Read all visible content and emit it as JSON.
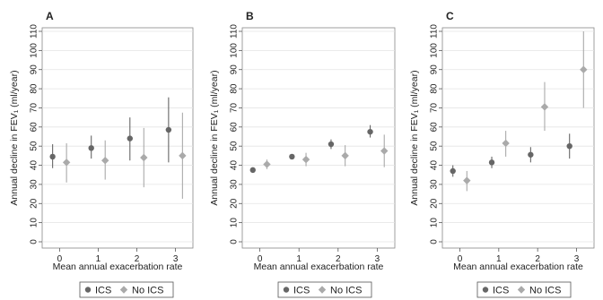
{
  "chart_data": [
    {
      "type": "scatter",
      "panel_label": "A",
      "xlabel": "Mean annual exacerbation rate",
      "ylabel": "Annual decline in FEV₁ (ml/year)",
      "xticks": [
        "0",
        "1",
        "2",
        "3"
      ],
      "yticks": [
        "0",
        "10",
        "20",
        "30",
        "40",
        "50",
        "60",
        "70",
        "80",
        "90",
        "100",
        "110"
      ],
      "ylim": [
        0,
        110
      ],
      "grid": true,
      "legend_position": "bottom",
      "series": [
        {
          "name": "ICS",
          "color": "#666666",
          "marker": "circle",
          "points": [
            {
              "x": -0.18,
              "y": 44.5,
              "lo": 38.5,
              "hi": 51
            },
            {
              "x": 0.82,
              "y": 49,
              "lo": 43.5,
              "hi": 55.5
            },
            {
              "x": 1.82,
              "y": 54,
              "lo": 42.5,
              "hi": 65
            },
            {
              "x": 2.82,
              "y": 58.5,
              "lo": 41.5,
              "hi": 75.5
            }
          ]
        },
        {
          "name": "No ICS",
          "color": "#aaaaaa",
          "marker": "diamond",
          "points": [
            {
              "x": 0.18,
              "y": 41.5,
              "lo": 31,
              "hi": 51.5
            },
            {
              "x": 1.18,
              "y": 42.5,
              "lo": 32.5,
              "hi": 53
            },
            {
              "x": 2.18,
              "y": 44,
              "lo": 28.5,
              "hi": 59.5
            },
            {
              "x": 3.18,
              "y": 45,
              "lo": 22.5,
              "hi": 67.5
            }
          ]
        }
      ]
    },
    {
      "type": "scatter",
      "panel_label": "B",
      "xlabel": "Mean annual exacerbation rate",
      "ylabel": "Annual decline in FEV₁ (ml/year)",
      "xticks": [
        "0",
        "1",
        "2",
        "3"
      ],
      "yticks": [
        "0",
        "10",
        "20",
        "30",
        "40",
        "50",
        "60",
        "70",
        "80",
        "90",
        "100",
        "110"
      ],
      "ylim": [
        0,
        110
      ],
      "grid": true,
      "legend_position": "bottom",
      "series": [
        {
          "name": "ICS",
          "color": "#666666",
          "marker": "circle",
          "points": [
            {
              "x": -0.18,
              "y": 37.5,
              "lo": 36.5,
              "hi": 38.5
            },
            {
              "x": 0.82,
              "y": 44.5,
              "lo": 43.5,
              "hi": 45.5
            },
            {
              "x": 1.82,
              "y": 51,
              "lo": 48.5,
              "hi": 53.5
            },
            {
              "x": 2.82,
              "y": 57.5,
              "lo": 54.5,
              "hi": 61
            }
          ]
        },
        {
          "name": "No ICS",
          "color": "#aaaaaa",
          "marker": "diamond",
          "points": [
            {
              "x": 0.18,
              "y": 40.5,
              "lo": 38,
              "hi": 43
            },
            {
              "x": 1.18,
              "y": 43,
              "lo": 39.5,
              "hi": 46.5
            },
            {
              "x": 2.18,
              "y": 45,
              "lo": 39.5,
              "hi": 50.5
            },
            {
              "x": 3.18,
              "y": 47.5,
              "lo": 39,
              "hi": 56
            }
          ]
        }
      ]
    },
    {
      "type": "scatter",
      "panel_label": "C",
      "xlabel": "Mean annual exacerbation rate",
      "ylabel": "Annual decline in FEV₁ (ml/year)",
      "xticks": [
        "0",
        "1",
        "2",
        "3"
      ],
      "yticks": [
        "0",
        "10",
        "20",
        "30",
        "40",
        "50",
        "60",
        "70",
        "80",
        "90",
        "100",
        "110"
      ],
      "ylim": [
        0,
        110
      ],
      "grid": true,
      "legend_position": "bottom",
      "series": [
        {
          "name": "ICS",
          "color": "#666666",
          "marker": "circle",
          "points": [
            {
              "x": -0.18,
              "y": 37,
              "lo": 34,
              "hi": 40
            },
            {
              "x": 0.82,
              "y": 41.5,
              "lo": 38.5,
              "hi": 44.5
            },
            {
              "x": 1.82,
              "y": 45.5,
              "lo": 41.5,
              "hi": 49.5
            },
            {
              "x": 2.82,
              "y": 50,
              "lo": 43.5,
              "hi": 56.5
            }
          ]
        },
        {
          "name": "No ICS",
          "color": "#aaaaaa",
          "marker": "diamond",
          "points": [
            {
              "x": 0.18,
              "y": 32,
              "lo": 26.5,
              "hi": 37
            },
            {
              "x": 1.18,
              "y": 51.5,
              "lo": 44.5,
              "hi": 58
            },
            {
              "x": 2.18,
              "y": 70.5,
              "lo": 58,
              "hi": 83.5
            },
            {
              "x": 3.18,
              "y": 90,
              "lo": 70,
              "hi": 110
            }
          ]
        }
      ]
    }
  ]
}
